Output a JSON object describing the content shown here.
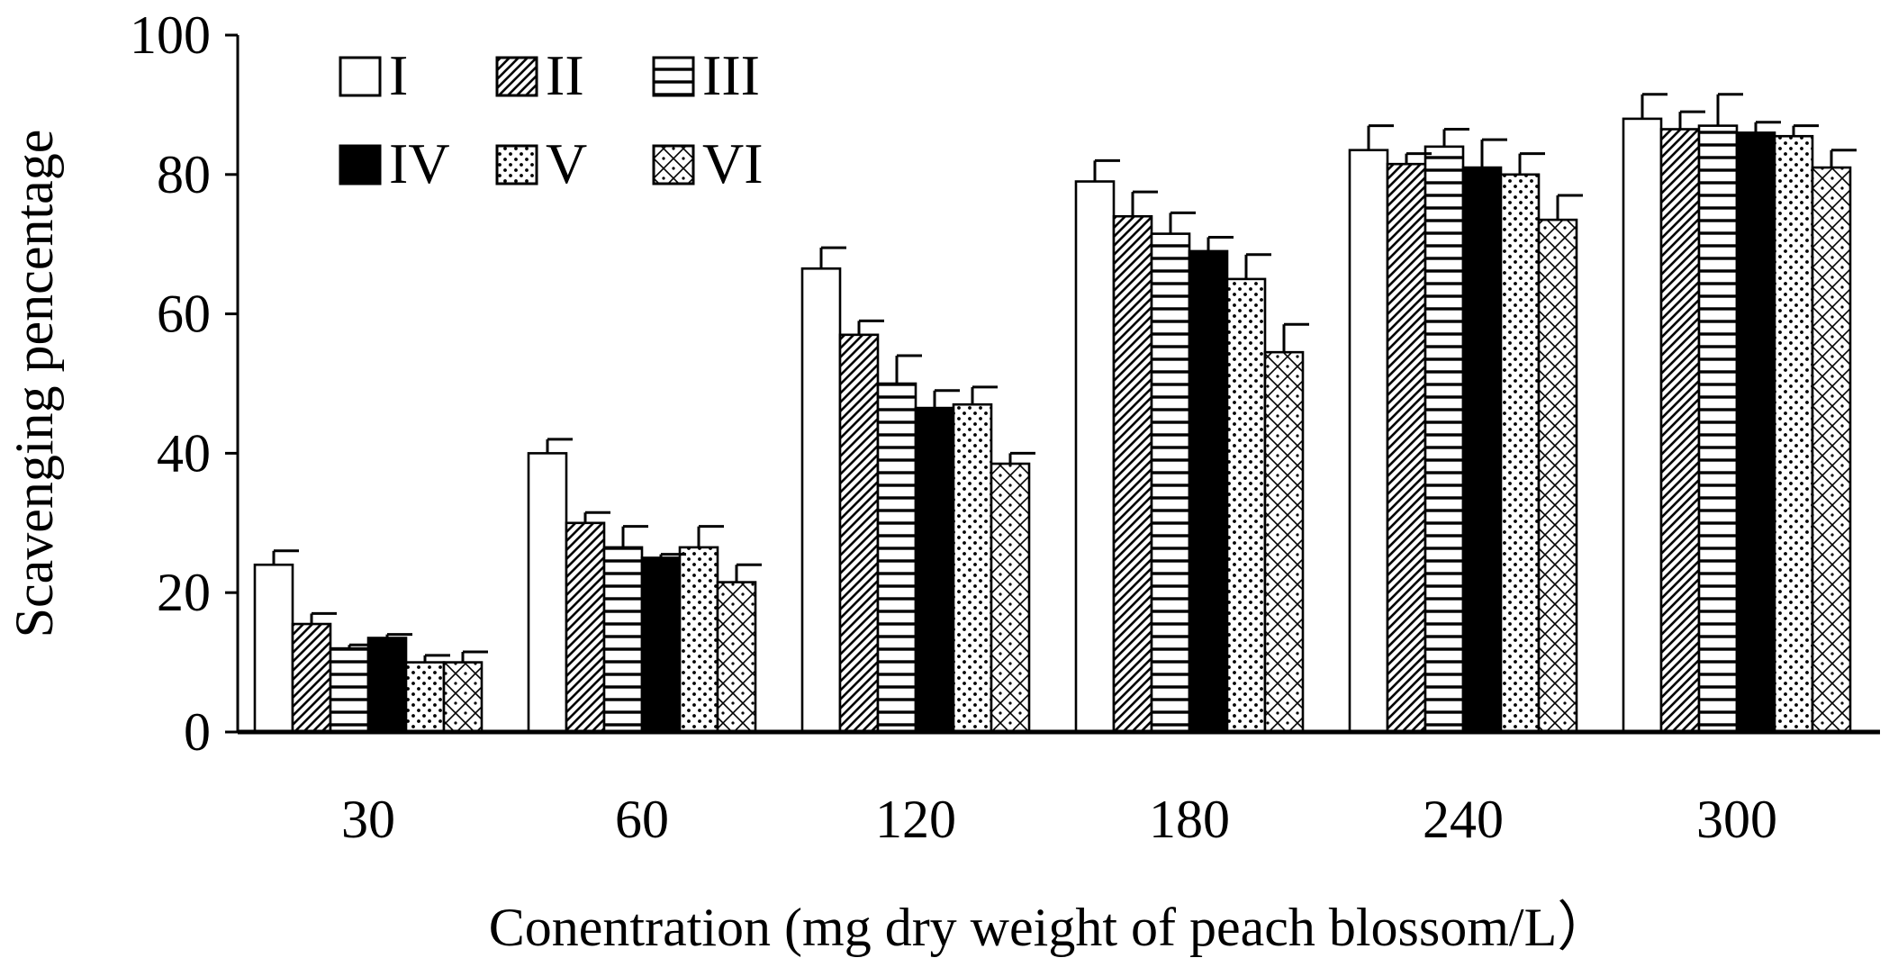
{
  "chart_data": {
    "type": "bar",
    "title": "",
    "xlabel": "Conentration (mg dry weight of peach blossom/L）",
    "ylabel": "Scavenging pencentage",
    "ylim": [
      0,
      100
    ],
    "yticks": [
      "0",
      "20",
      "40",
      "60",
      "80",
      "100"
    ],
    "grid": false,
    "legend_position": "top-left",
    "categories": [
      "30",
      "60",
      "120",
      "180",
      "240",
      "300"
    ],
    "error_bars": "upper",
    "series": [
      {
        "name": "I",
        "pattern": "solid-white",
        "values": [
          24,
          40,
          66.5,
          79,
          83.5,
          88
        ],
        "errors": [
          2,
          2,
          3,
          3,
          3.5,
          3.5
        ]
      },
      {
        "name": "II",
        "pattern": "diagonal-hatch",
        "values": [
          15.5,
          30,
          57,
          74,
          81.5,
          86.5
        ],
        "errors": [
          1.5,
          1.5,
          2,
          3.5,
          1.5,
          2.5
        ]
      },
      {
        "name": "III",
        "pattern": "horizontal-lines",
        "values": [
          12,
          26.5,
          50,
          71.5,
          84,
          87
        ],
        "errors": [
          0.5,
          3,
          4,
          3,
          2.5,
          4.5
        ]
      },
      {
        "name": "IV",
        "pattern": "solid-black",
        "values": [
          13.5,
          25,
          46.5,
          69,
          81,
          86
        ],
        "errors": [
          0.5,
          0.5,
          2.5,
          2,
          4,
          1.5
        ]
      },
      {
        "name": "V",
        "pattern": "dots",
        "values": [
          10,
          26.5,
          47,
          65,
          80,
          85.5
        ],
        "errors": [
          1,
          3,
          2.5,
          3.5,
          3,
          1.5
        ]
      },
      {
        "name": "VI",
        "pattern": "cross-hatch",
        "values": [
          10,
          21.5,
          38.5,
          54.5,
          73.5,
          81
        ],
        "errors": [
          1.5,
          2.5,
          1.5,
          4,
          3.5,
          2.5
        ]
      }
    ],
    "colors": {
      "axis": "#000000",
      "bar_stroke": "#000000",
      "background": "#ffffff"
    }
  }
}
